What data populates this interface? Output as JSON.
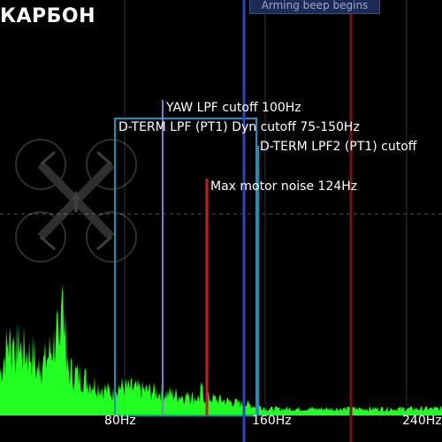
{
  "app": {
    "title": "КАРБОН",
    "tooltip": "Arming beep begins"
  },
  "markers": {
    "yaw_lpf": "YAW LPF cutoff 100Hz",
    "dterm_lpf_pt1": "D-TERM LPF (PT1) Dyn cutoff 75-150Hz",
    "dterm_lpf2": "D-TERM LPF2 (PT1) cutoff",
    "max_motor_noise": "Max motor noise 124Hz"
  },
  "axis": {
    "x_ticks": [
      "80Hz",
      "160Hz",
      "240Hz"
    ]
  },
  "colors": {
    "spectrum": "#22ff22",
    "yaw": "#7d7dd6",
    "dterm": "#1f8fb3",
    "motor": "#cc1a1a",
    "grid": "#3b3b3b"
  }
}
